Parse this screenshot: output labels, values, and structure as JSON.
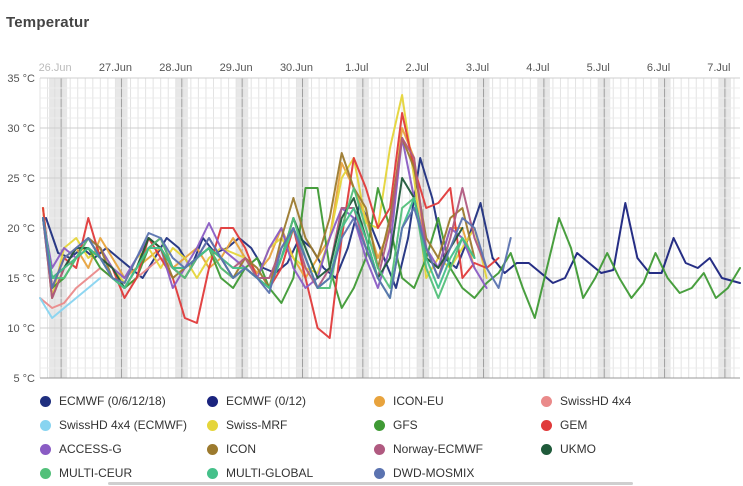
{
  "title": "Temperatur",
  "chart_data": {
    "type": "line",
    "x_unit": "days since 26 Jun 00:00",
    "xlim": [
      0,
      11.6
    ],
    "ylim": [
      5,
      35
    ],
    "yticks": [
      5,
      10,
      15,
      20,
      25,
      30,
      35
    ],
    "ytick_labels": [
      "5 °C",
      "10 °C",
      "15 °C",
      "20 °C",
      "25 °C",
      "30 °C",
      "35 °C"
    ],
    "xticks": [
      0,
      1,
      2,
      3,
      4,
      5,
      6,
      7,
      8,
      9,
      10,
      11
    ],
    "xtick_labels": [
      "26.Jun",
      "27.Jun",
      "28.Jun",
      "29.Jun",
      "30.Jun",
      "1.Jul",
      "2.Jul",
      "3.Jul",
      "4.Jul",
      "5.Jul",
      "6.Jul",
      "7.Jul"
    ],
    "night_bands": [
      0.15,
      0.25,
      1.25,
      2.25,
      3.25,
      4.25,
      5.25,
      6.25,
      7.25,
      8.25,
      9.25,
      10.25,
      11.25
    ],
    "series": [
      {
        "name": "ECMWF (0/6/12/18)",
        "color": "#1f2f7f",
        "x": [
          0.1,
          0.3,
          0.5,
          0.7,
          0.9,
          1.1,
          1.3,
          1.5,
          1.7,
          1.9,
          2.1,
          2.3,
          2.5,
          2.7,
          2.9,
          3.1,
          3.3,
          3.5,
          3.7,
          3.9,
          4.1,
          4.3,
          4.5,
          4.7,
          4.9,
          5.1,
          5.3,
          5.5,
          5.7,
          5.9,
          6.1,
          6.3,
          6.5,
          6.7,
          6.9,
          7.1,
          7.3,
          7.5
        ],
        "y": [
          21,
          17.5,
          17,
          18,
          17,
          18,
          17,
          16,
          15,
          17,
          19,
          18,
          16,
          19,
          17.5,
          18,
          19,
          18,
          16,
          15.5,
          16.5,
          19,
          18,
          16,
          15,
          18,
          22.5,
          20,
          17,
          14,
          19,
          27,
          23,
          17,
          16,
          19,
          22.5,
          17
        ]
      },
      {
        "name": "ECMWF (0/12)",
        "color": "#1a237e",
        "x": [
          7.5,
          7.7,
          7.9,
          8.1,
          8.3,
          8.5,
          8.7,
          8.9,
          9.1,
          9.3,
          9.5,
          9.7,
          9.9,
          10.1,
          10.3,
          10.5,
          10.7,
          10.9,
          11.1,
          11.3,
          11.6
        ],
        "y": [
          17,
          15.5,
          16.5,
          16.5,
          15.5,
          14.5,
          15,
          17.5,
          16.5,
          15.5,
          15.8,
          22.5,
          17,
          15.5,
          15.5,
          19,
          16.5,
          16,
          17,
          15,
          14.5
        ]
      },
      {
        "name": "ICON-EU",
        "color": "#e8a33d",
        "x": [
          0.05,
          0.2,
          0.4,
          0.6,
          0.8,
          1.0,
          1.2,
          1.4,
          1.6,
          1.8,
          2.0,
          2.2,
          2.4,
          2.6,
          2.8,
          3.0,
          3.2,
          3.4,
          3.6,
          3.8,
          4.0,
          4.2,
          4.4,
          4.6,
          4.8,
          5.0,
          5.2,
          5.4,
          5.6,
          5.8,
          6.0,
          6.2,
          6.4,
          6.6,
          6.8,
          7.0,
          7.2
        ],
        "y": [
          22,
          14,
          17,
          18,
          16,
          19,
          17,
          15,
          16,
          17,
          18,
          16,
          17,
          18,
          16,
          17,
          19,
          17,
          15.5,
          17,
          20,
          17,
          15,
          17,
          19,
          26.5,
          24,
          21,
          17,
          20,
          30,
          27,
          17,
          16,
          20,
          20,
          16
        ]
      },
      {
        "name": "SwissHD 4x4",
        "color": "#ea8a8a",
        "x": [
          0.0,
          0.2,
          0.4,
          0.6,
          0.8,
          1.0,
          1.2,
          1.4,
          1.6,
          1.8,
          2.0,
          2.2
        ],
        "y": [
          13,
          12,
          12.5,
          14,
          15,
          16,
          15,
          14,
          15,
          16,
          17,
          16
        ]
      },
      {
        "name": "SwissHD 4x4 (ECMWF)",
        "color": "#88d4f0",
        "x": [
          0.0,
          0.2,
          0.4,
          0.6,
          0.8,
          1.0
        ],
        "y": [
          13,
          11,
          12,
          13,
          14,
          15
        ]
      },
      {
        "name": "Swiss-MRF",
        "color": "#e5d53a",
        "x": [
          0.05,
          0.2,
          0.4,
          0.6,
          0.8,
          1.0,
          1.2,
          1.4,
          1.6,
          1.8,
          2.0,
          2.2,
          2.4,
          2.6,
          2.8,
          3.0,
          3.2,
          3.4,
          3.6,
          3.8,
          4.0,
          4.2,
          4.4,
          4.6,
          4.8,
          5.0,
          5.2,
          5.4,
          5.6,
          5.8,
          6.0,
          6.2,
          6.4,
          6.6,
          6.8,
          7.0,
          7.2,
          7.4
        ],
        "y": [
          22,
          13,
          18,
          19,
          17,
          18,
          16,
          14.5,
          17,
          18,
          16,
          18,
          17,
          15,
          17,
          18,
          17.5,
          17,
          15,
          18,
          19,
          17,
          16,
          15.5,
          19,
          25,
          27,
          20.5,
          20,
          28,
          33.3,
          25,
          15,
          17,
          16,
          18,
          20,
          15
        ]
      },
      {
        "name": "GFS",
        "color": "#3f9a35",
        "x": [
          0.05,
          0.2,
          0.4,
          0.6,
          0.8,
          1.0,
          1.2,
          1.4,
          1.6,
          1.8,
          2.0,
          2.2,
          2.4,
          2.6,
          2.8,
          3.0,
          3.2,
          3.4,
          3.6,
          3.8,
          4.0,
          4.2,
          4.4,
          4.6,
          4.8,
          5.0,
          5.2,
          5.4,
          5.6,
          5.8,
          6.0,
          6.2,
          6.4,
          6.6,
          6.8,
          7.0,
          7.2,
          7.4,
          7.6,
          7.8,
          8.0,
          8.2,
          8.4,
          8.6,
          8.8,
          9.0,
          9.2,
          9.4,
          9.6,
          9.8,
          10.0,
          10.2,
          10.4,
          10.6,
          10.8,
          11.0,
          11.2,
          11.4,
          11.6
        ],
        "y": [
          21,
          14,
          15,
          17,
          18,
          16,
          15,
          14,
          15,
          18,
          19,
          16,
          15,
          17,
          18,
          15,
          14,
          16,
          17,
          14,
          12.5,
          15,
          24,
          24,
          16,
          12,
          14,
          17,
          24,
          20,
          15,
          14,
          17,
          21,
          16,
          14,
          13,
          14.5,
          15.5,
          17.5,
          14,
          11,
          16,
          21,
          18,
          13,
          15,
          17.5,
          15,
          13,
          14.5,
          17.5,
          15,
          13.5,
          14,
          15.5,
          13,
          14,
          16
        ]
      },
      {
        "name": "GEM",
        "color": "#e03a3a",
        "x": [
          0.05,
          0.2,
          0.4,
          0.6,
          0.8,
          1.0,
          1.2,
          1.4,
          1.6,
          1.8,
          2.0,
          2.2,
          2.4,
          2.6,
          2.8,
          3.0,
          3.2,
          3.4,
          3.6,
          3.8,
          4.0,
          4.2,
          4.4,
          4.6,
          4.8,
          5.0,
          5.2,
          5.4,
          5.6,
          5.8,
          6.0,
          6.2,
          6.4,
          6.6,
          6.8,
          7.0,
          7.2,
          7.4,
          7.6
        ],
        "y": [
          22,
          14,
          17,
          16,
          21,
          17,
          16,
          13,
          15,
          19,
          17,
          15,
          11,
          10.5,
          16,
          20,
          20,
          18,
          15,
          14,
          16,
          20,
          15,
          10,
          9,
          19,
          27,
          24,
          20,
          22,
          31.5,
          26,
          22,
          22.5,
          24,
          15,
          16.5,
          16,
          17
        ]
      },
      {
        "name": "ACCESS-G",
        "color": "#8a5cc4",
        "x": [
          0.05,
          0.2,
          0.4,
          0.6,
          0.8,
          1.0,
          1.2,
          1.4,
          1.6,
          1.8,
          2.0,
          2.2,
          2.4,
          2.6,
          2.8,
          3.0,
          3.2,
          3.4,
          3.6,
          3.8,
          4.0,
          4.2,
          4.4,
          4.6,
          4.8,
          5.0,
          5.2,
          5.4,
          5.6,
          5.8,
          6.0,
          6.2,
          6.4,
          6.6,
          6.8,
          7.0,
          7.2,
          7.4
        ],
        "y": [
          21,
          16,
          18,
          17,
          19,
          18,
          16,
          15,
          17,
          19,
          18,
          14,
          16,
          18,
          20.5,
          18,
          17,
          16,
          15,
          18,
          20,
          16,
          14,
          15,
          19,
          22,
          21,
          17,
          14,
          18,
          29,
          23,
          18,
          16,
          20,
          19,
          16,
          14
        ]
      },
      {
        "name": "ICON",
        "color": "#9c7a2e",
        "x": [
          0.05,
          0.2,
          0.4,
          0.6,
          0.8,
          1.0,
          1.2,
          1.4,
          1.6,
          1.8,
          2.0,
          2.2,
          2.4,
          2.6,
          2.8,
          3.0,
          3.2,
          3.4,
          3.6,
          3.8,
          4.0,
          4.2,
          4.4,
          4.6,
          4.8,
          5.0,
          5.2,
          5.4,
          5.6,
          5.8,
          6.0,
          6.2,
          6.4,
          6.6,
          6.8,
          7.0,
          7.2
        ],
        "y": [
          21,
          13,
          16,
          17,
          19,
          18,
          15,
          14,
          16,
          19,
          18,
          15,
          16,
          17,
          18,
          16,
          15,
          17,
          16,
          14,
          19,
          23,
          19,
          17,
          21,
          27.5,
          24,
          22,
          16,
          21,
          29,
          26,
          19,
          17,
          21,
          22,
          17
        ]
      },
      {
        "name": "Norway-ECMWF",
        "color": "#b05a80",
        "x": [
          0.05,
          0.2,
          0.4,
          0.6,
          0.8,
          1.0,
          1.2,
          1.4,
          1.6,
          1.8,
          2.0,
          2.2,
          2.4,
          2.6,
          2.8,
          3.0,
          3.2,
          3.4,
          3.6,
          3.8,
          4.0,
          4.2,
          4.4,
          4.6,
          4.8,
          5.0,
          5.2,
          5.4,
          5.6,
          5.8,
          6.0,
          6.2,
          6.4,
          6.6,
          6.8,
          7.0,
          7.2,
          7.4
        ],
        "y": [
          21,
          13,
          16,
          18,
          19,
          17,
          15,
          14,
          16,
          18,
          19,
          16,
          15,
          17,
          19,
          17,
          16,
          17,
          15,
          15,
          18,
          20,
          16,
          14,
          16,
          22,
          22,
          18,
          15,
          20,
          29,
          27,
          18,
          15,
          19,
          24,
          19,
          16
        ]
      },
      {
        "name": "UKMO",
        "color": "#1f5a3a",
        "x": [
          0.05,
          0.2,
          0.4,
          0.6,
          0.8,
          1.0,
          1.2,
          1.4,
          1.6,
          1.8,
          2.0,
          2.2,
          2.4,
          2.6,
          2.8,
          3.0,
          3.2,
          3.4,
          3.6,
          3.8,
          4.0,
          4.2,
          4.4,
          4.6,
          4.8,
          5.0,
          5.2,
          5.4,
          5.6,
          5.8,
          6.0,
          6.2,
          6.4,
          6.6,
          6.8,
          7.0
        ],
        "y": [
          21,
          15,
          16,
          18,
          18,
          17,
          16,
          14,
          16,
          19,
          18,
          16,
          16,
          17,
          18,
          17,
          15,
          16,
          15,
          14,
          17,
          21,
          18,
          15,
          16,
          21,
          23,
          19,
          15,
          17,
          25,
          23,
          17,
          16,
          18,
          20
        ]
      },
      {
        "name": "MULTI-CEUR",
        "color": "#53c07a",
        "x": [
          0.05,
          0.2,
          0.4,
          0.6,
          0.8,
          1.0,
          1.2,
          1.4,
          1.6,
          1.8,
          2.0,
          2.2,
          2.4,
          2.6,
          2.8,
          3.0,
          3.2,
          3.4,
          3.6,
          3.8,
          4.0,
          4.2,
          4.4,
          4.6,
          4.8,
          5.0,
          5.2,
          5.4,
          5.6,
          5.8,
          6.0,
          6.2,
          6.4,
          6.6,
          6.8,
          7.0,
          7.2
        ],
        "y": [
          21,
          15,
          15,
          17,
          19,
          17,
          15,
          14,
          16,
          18,
          19,
          16,
          15,
          17,
          18,
          16,
          15,
          16,
          15,
          14,
          17,
          21,
          17,
          14,
          14,
          20,
          24,
          20,
          16,
          14,
          22,
          23,
          16,
          13,
          16,
          19,
          17
        ]
      },
      {
        "name": "MULTI-GLOBAL",
        "color": "#45c08a",
        "x": [
          0.05,
          0.2,
          0.4,
          0.6,
          0.8,
          1.0,
          1.2,
          1.4,
          1.6,
          1.8,
          2.0,
          2.2,
          2.4,
          2.6,
          2.8,
          3.0,
          3.2,
          3.4,
          3.6,
          3.8,
          4.0,
          4.2,
          4.4,
          4.6,
          4.8,
          5.0,
          5.2,
          5.4,
          5.6,
          5.8,
          6.0,
          6.2,
          6.4,
          6.6,
          6.8,
          7.0,
          7.2
        ],
        "y": [
          21,
          15,
          16,
          17,
          18,
          17,
          15,
          14,
          16,
          18,
          18,
          16,
          16,
          17,
          18,
          17,
          16,
          16,
          15,
          14,
          17,
          20,
          17,
          14,
          15,
          20,
          22,
          19,
          15,
          13,
          20,
          23,
          17,
          14,
          17,
          19,
          17
        ]
      },
      {
        "name": "DWD-MOSMIX",
        "color": "#5b73b0",
        "x": [
          0.05,
          0.2,
          0.4,
          0.6,
          0.8,
          1.0,
          1.2,
          1.4,
          1.6,
          1.8,
          2.0,
          2.2,
          2.4,
          2.6,
          2.8,
          3.0,
          3.2,
          3.4,
          3.6,
          3.8,
          4.0,
          4.2,
          4.4,
          4.6,
          4.8,
          5.0,
          5.2,
          5.4,
          5.6,
          5.8,
          6.0,
          6.2,
          6.4,
          6.6,
          6.8,
          7.0,
          7.2,
          7.4,
          7.6,
          7.8
        ],
        "y": [
          21,
          14,
          17,
          18,
          19,
          17,
          15,
          14.5,
          17,
          19.5,
          19,
          17,
          16,
          17,
          19,
          17,
          15,
          16,
          15,
          13.5,
          18,
          20,
          17,
          14,
          15,
          19,
          21,
          18,
          15,
          13,
          20,
          22,
          18,
          15,
          18,
          21,
          20,
          16,
          14,
          19
        ]
      }
    ]
  }
}
